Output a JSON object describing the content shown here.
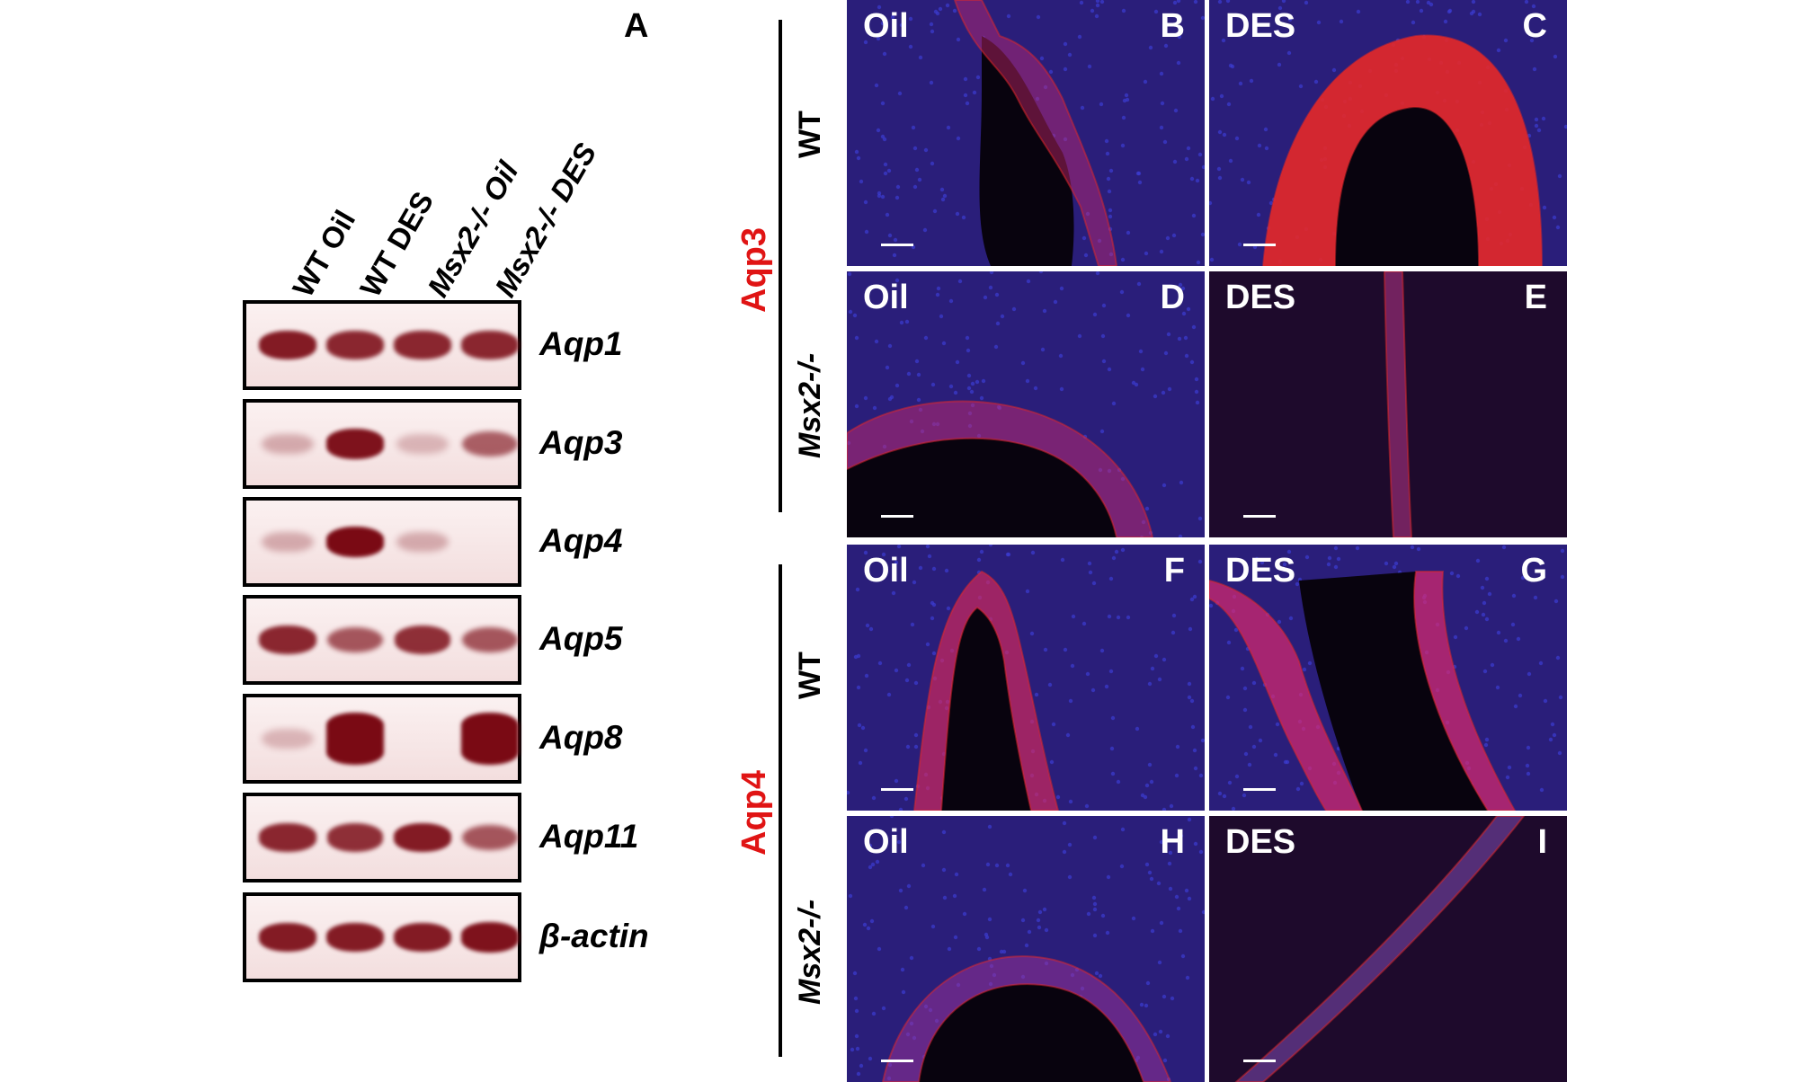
{
  "panel_a": {
    "letter": "A",
    "lanes": [
      "WT Oil",
      "WT DES",
      "Msx2-/- Oil",
      "Msx2-/- DES"
    ],
    "genes": [
      "Aqp1",
      "Aqp3",
      "Aqp4",
      "Aqp5",
      "Aqp8",
      "Aqp11",
      "β-actin"
    ],
    "band_intensity": [
      [
        0.9,
        0.85,
        0.85,
        0.85
      ],
      [
        0.15,
        0.95,
        0.1,
        0.55
      ],
      [
        0.15,
        1.0,
        0.15,
        0.0
      ],
      [
        0.85,
        0.6,
        0.8,
        0.6
      ],
      [
        0.1,
        1.0,
        0.0,
        1.0
      ],
      [
        0.85,
        0.8,
        0.9,
        0.6
      ],
      [
        0.9,
        0.9,
        0.9,
        0.95
      ]
    ]
  },
  "groups": [
    {
      "protein": "Aqp3",
      "rows": [
        "WT",
        "Msx2-/-"
      ]
    },
    {
      "protein": "Aqp4",
      "rows": [
        "WT",
        "Msx2-/-"
      ]
    }
  ],
  "panels": [
    {
      "treatment": "Oil",
      "letter": "B"
    },
    {
      "treatment": "DES",
      "letter": "C"
    },
    {
      "treatment": "Oil",
      "letter": "D"
    },
    {
      "treatment": "DES",
      "letter": "E"
    },
    {
      "treatment": "Oil",
      "letter": "F"
    },
    {
      "treatment": "DES",
      "letter": "G"
    },
    {
      "treatment": "Oil",
      "letter": "H"
    },
    {
      "treatment": "DES",
      "letter": "I"
    }
  ],
  "colors": {
    "label_red": "#e01414",
    "band": "#7a0a14",
    "nuclei": "#3c3cd2",
    "stain": "#e02828"
  }
}
